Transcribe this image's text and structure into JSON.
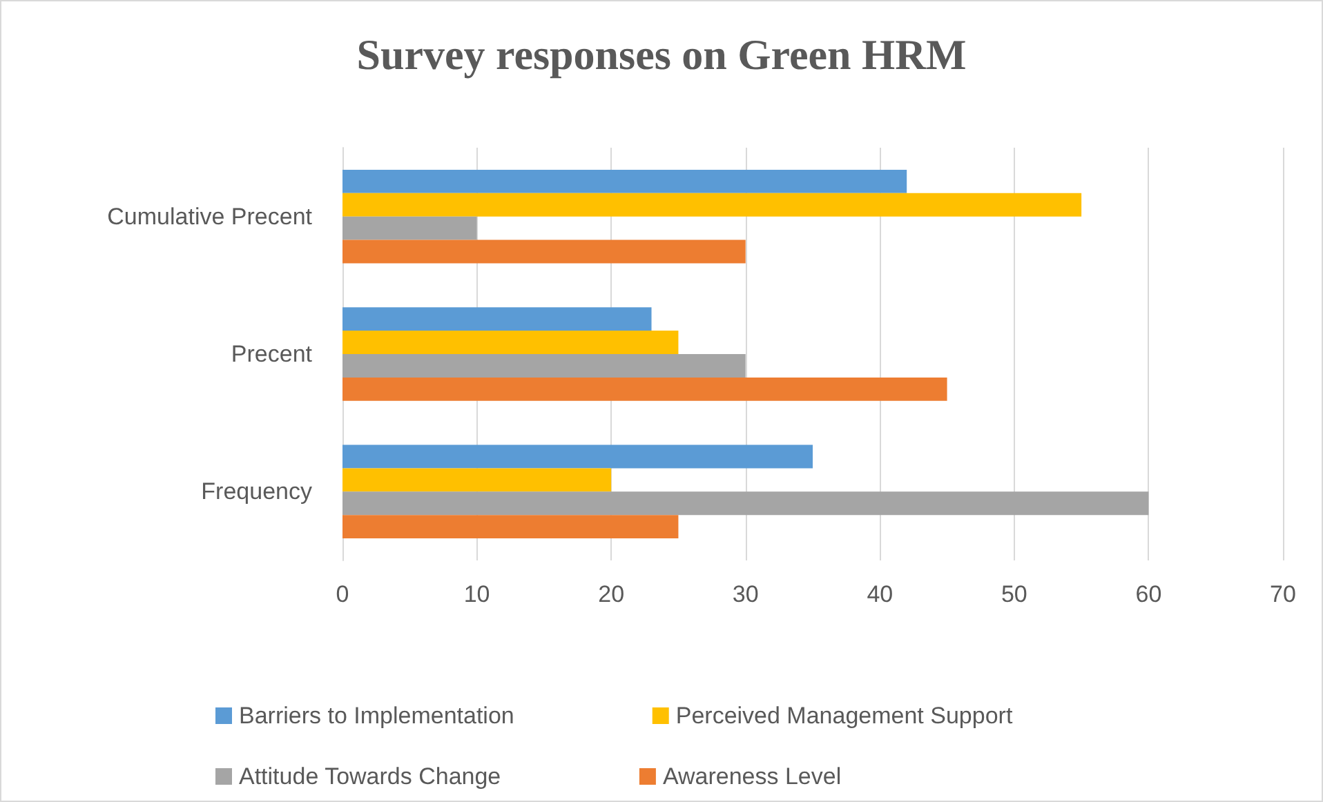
{
  "chart_data": {
    "type": "bar",
    "orientation": "horizontal",
    "title": "Survey responses on Green HRM",
    "categories": [
      "Cumulative Precent",
      "Precent",
      "Frequency"
    ],
    "series": [
      {
        "name": "Barriers to Implementation",
        "color": "#5b9bd5",
        "values": [
          42,
          23,
          35
        ]
      },
      {
        "name": "Perceived Management Support",
        "color": "#ffc000",
        "values": [
          55,
          25,
          20
        ]
      },
      {
        "name": "Attitude Towards Change",
        "color": "#a5a5a5",
        "values": [
          10,
          30,
          60
        ]
      },
      {
        "name": "Awareness Level",
        "color": "#ed7d31",
        "values": [
          30,
          45,
          25
        ]
      }
    ],
    "xlim": [
      0,
      70
    ],
    "xticks": [
      0,
      10,
      20,
      30,
      40,
      50,
      60,
      70
    ],
    "grid": "x",
    "legend": "bottom"
  }
}
